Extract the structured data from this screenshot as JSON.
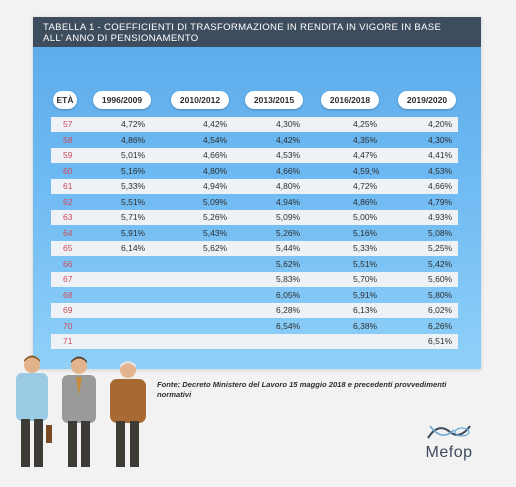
{
  "title": {
    "line1": "TABELLA 1 - COEFFICIENTI DI TRASFORMAZIONE IN RENDITA IN VIGORE IN BASE",
    "line2": "ALL' ANNO DI PENSIONAMENTO"
  },
  "table": {
    "headers": [
      "ETÀ",
      "1996/2009",
      "2010/2012",
      "2013/2015",
      "2016/2018",
      "2019/2020"
    ],
    "rows": [
      [
        "57",
        "4,72%",
        "4,42%",
        "4,30%",
        "4,25%",
        "4,20%"
      ],
      [
        "58",
        "4,86%",
        "4,54%",
        "4,42%",
        "4,35%",
        "4,30%"
      ],
      [
        "59",
        "5,01%",
        "4,66%",
        "4,53%",
        "4,47%",
        "4,41%"
      ],
      [
        "60",
        "5,16%",
        "4,80%",
        "4,66%",
        "4,59,%",
        "4,53%"
      ],
      [
        "61",
        "5,33%",
        "4,94%",
        "4,80%",
        "4,72%",
        "4,66%"
      ],
      [
        "62",
        "5,51%",
        "5,09%",
        "4,94%",
        "4,86%",
        "4,79%"
      ],
      [
        "63",
        "5,71%",
        "5,26%",
        "5,09%",
        "5,00%",
        "4,93%"
      ],
      [
        "64",
        "5,91%",
        "5,43%",
        "5,26%",
        "5,16%",
        "5,08%"
      ],
      [
        "65",
        "6,14%",
        "5,62%",
        "5,44%",
        "5,33%",
        "5,25%"
      ],
      [
        "66",
        "",
        "",
        "5,62%",
        "5,51%",
        "5,42%"
      ],
      [
        "67",
        "",
        "",
        "5,83%",
        "5,70%",
        "5,60%"
      ],
      [
        "68",
        "",
        "",
        "6,05%",
        "5,91%",
        "5,80%"
      ],
      [
        "69",
        "",
        "",
        "6,28%",
        "6,13%",
        "6,02%"
      ],
      [
        "70",
        "",
        "",
        "6,54%",
        "6,38%",
        "6,26%"
      ],
      [
        "71",
        "",
        "",
        "",
        "",
        "6,51%"
      ]
    ]
  },
  "source": {
    "line1": "Fonte: Decreto Ministero del Lavoro 15 maggio 2018 e precedenti provvedimenti",
    "line2": "normativi"
  },
  "logo": {
    "text": "Mefop",
    "icon": "mefop-logo-icon"
  },
  "colors": {
    "title_bar": "#3e4d5e",
    "panel_top": "#5aa9e9",
    "panel_bottom": "#8fd0f8",
    "row_light": "#eef1f6",
    "age_text": "#d14b5a"
  }
}
